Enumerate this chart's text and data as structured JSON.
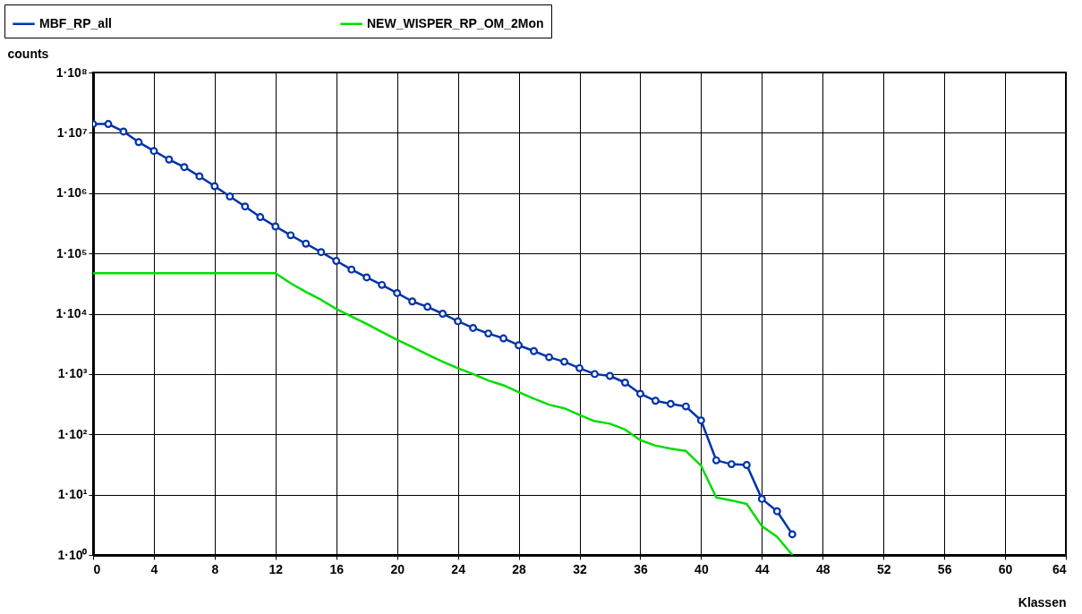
{
  "chart_data": {
    "type": "line",
    "xlabel": "Klassen",
    "ylabel": "counts",
    "log": true,
    "grid": true,
    "legend": "top",
    "xlim": [
      0,
      64
    ],
    "xticks": [
      0,
      4,
      8,
      12,
      16,
      20,
      24,
      28,
      32,
      36,
      40,
      44,
      48,
      52,
      56,
      60,
      64
    ],
    "ylim": [
      1,
      100000000
    ],
    "yticks": [
      {
        "value": 1,
        "label": "1·10⁰"
      },
      {
        "value": 10,
        "label": "1·10¹"
      },
      {
        "value": 100,
        "label": "1·10²"
      },
      {
        "value": 1000,
        "label": "1·10³"
      },
      {
        "value": 10000,
        "label": "1·10⁴"
      },
      {
        "value": 100000,
        "label": "1·10⁵"
      },
      {
        "value": 1000000,
        "label": "1·10⁶"
      },
      {
        "value": 10000000,
        "label": "1·10⁷"
      },
      {
        "value": 100000000,
        "label": "1·10⁸"
      }
    ],
    "x": [
      0,
      1,
      2,
      3,
      4,
      5,
      6,
      7,
      8,
      9,
      10,
      11,
      12,
      13,
      14,
      15,
      16,
      17,
      18,
      19,
      20,
      21,
      22,
      23,
      24,
      25,
      26,
      27,
      28,
      29,
      30,
      31,
      32,
      33,
      34,
      35,
      36,
      37,
      38,
      39,
      40,
      41,
      42,
      43,
      44,
      45,
      46
    ],
    "series": [
      {
        "name": "MBF_RP_all",
        "color": "#0033aa",
        "marker": "circle",
        "values": [
          14000000,
          14000000,
          10500000,
          7000000,
          5000000,
          3600000,
          2700000,
          1900000,
          1300000,
          880000,
          600000,
          400000,
          280000,
          200000,
          145000,
          105000,
          75000,
          54000,
          40000,
          30000,
          22000,
          16000,
          13000,
          10000,
          7500,
          5800,
          4700,
          3900,
          3000,
          2400,
          1900,
          1600,
          1250,
          1000,
          930,
          720,
          470,
          360,
          320,
          290,
          170,
          37,
          32,
          31,
          8.5,
          5.3,
          2.2
        ]
      },
      {
        "name": "NEW_WISPER_RP_OM_2Mon",
        "color": "#00dd00",
        "marker": "none",
        "values": [
          47000,
          47000,
          47000,
          47000,
          47000,
          47000,
          47000,
          47000,
          47000,
          47000,
          47000,
          47000,
          47000,
          32000,
          23000,
          17000,
          12000,
          9000,
          6800,
          5000,
          3700,
          2800,
          2100,
          1600,
          1250,
          1000,
          780,
          650,
          500,
          390,
          310,
          270,
          210,
          165,
          150,
          120,
          80,
          65,
          58,
          53,
          30,
          9,
          8,
          7,
          3,
          2,
          1
        ]
      }
    ]
  }
}
